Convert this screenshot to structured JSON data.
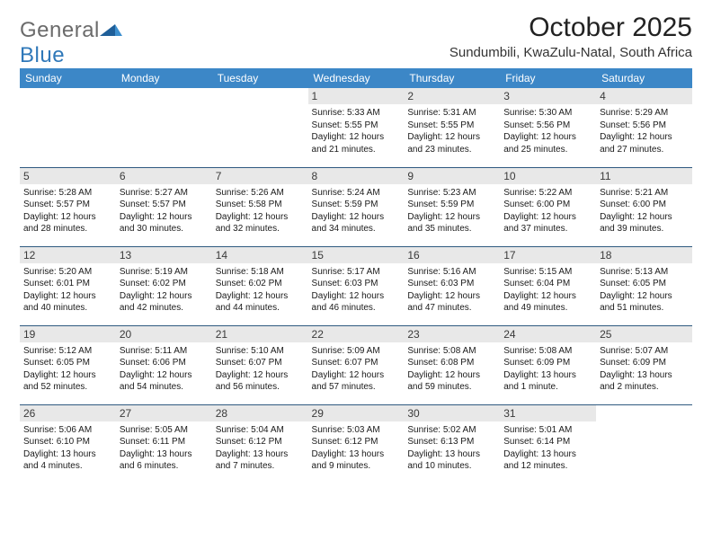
{
  "brand": {
    "word1": "General",
    "word2": "Blue"
  },
  "title": "October 2025",
  "location": "Sundumbili, KwaZulu-Natal, South Africa",
  "colors": {
    "header_bg": "#3c87c7",
    "header_text": "#ffffff",
    "row_divider": "#2f5a80",
    "daynum_bg": "#e8e8e8",
    "logo_gray": "#6b6b6b",
    "logo_blue": "#2f78b9",
    "body_text": "#1a1a1a",
    "page_bg": "#ffffff"
  },
  "typography": {
    "title_fontsize": 30,
    "location_fontsize": 15,
    "weekday_fontsize": 12,
    "daynum_fontsize": 12,
    "body_fontsize": 10,
    "logo_fontsize": 24
  },
  "weekdays": [
    "Sunday",
    "Monday",
    "Tuesday",
    "Wednesday",
    "Thursday",
    "Friday",
    "Saturday"
  ],
  "weeks": [
    [
      null,
      null,
      null,
      {
        "n": "1",
        "sunrise": "Sunrise: 5:33 AM",
        "sunset": "Sunset: 5:55 PM",
        "dl1": "Daylight: 12 hours",
        "dl2": "and 21 minutes."
      },
      {
        "n": "2",
        "sunrise": "Sunrise: 5:31 AM",
        "sunset": "Sunset: 5:55 PM",
        "dl1": "Daylight: 12 hours",
        "dl2": "and 23 minutes."
      },
      {
        "n": "3",
        "sunrise": "Sunrise: 5:30 AM",
        "sunset": "Sunset: 5:56 PM",
        "dl1": "Daylight: 12 hours",
        "dl2": "and 25 minutes."
      },
      {
        "n": "4",
        "sunrise": "Sunrise: 5:29 AM",
        "sunset": "Sunset: 5:56 PM",
        "dl1": "Daylight: 12 hours",
        "dl2": "and 27 minutes."
      }
    ],
    [
      {
        "n": "5",
        "sunrise": "Sunrise: 5:28 AM",
        "sunset": "Sunset: 5:57 PM",
        "dl1": "Daylight: 12 hours",
        "dl2": "and 28 minutes."
      },
      {
        "n": "6",
        "sunrise": "Sunrise: 5:27 AM",
        "sunset": "Sunset: 5:57 PM",
        "dl1": "Daylight: 12 hours",
        "dl2": "and 30 minutes."
      },
      {
        "n": "7",
        "sunrise": "Sunrise: 5:26 AM",
        "sunset": "Sunset: 5:58 PM",
        "dl1": "Daylight: 12 hours",
        "dl2": "and 32 minutes."
      },
      {
        "n": "8",
        "sunrise": "Sunrise: 5:24 AM",
        "sunset": "Sunset: 5:59 PM",
        "dl1": "Daylight: 12 hours",
        "dl2": "and 34 minutes."
      },
      {
        "n": "9",
        "sunrise": "Sunrise: 5:23 AM",
        "sunset": "Sunset: 5:59 PM",
        "dl1": "Daylight: 12 hours",
        "dl2": "and 35 minutes."
      },
      {
        "n": "10",
        "sunrise": "Sunrise: 5:22 AM",
        "sunset": "Sunset: 6:00 PM",
        "dl1": "Daylight: 12 hours",
        "dl2": "and 37 minutes."
      },
      {
        "n": "11",
        "sunrise": "Sunrise: 5:21 AM",
        "sunset": "Sunset: 6:00 PM",
        "dl1": "Daylight: 12 hours",
        "dl2": "and 39 minutes."
      }
    ],
    [
      {
        "n": "12",
        "sunrise": "Sunrise: 5:20 AM",
        "sunset": "Sunset: 6:01 PM",
        "dl1": "Daylight: 12 hours",
        "dl2": "and 40 minutes."
      },
      {
        "n": "13",
        "sunrise": "Sunrise: 5:19 AM",
        "sunset": "Sunset: 6:02 PM",
        "dl1": "Daylight: 12 hours",
        "dl2": "and 42 minutes."
      },
      {
        "n": "14",
        "sunrise": "Sunrise: 5:18 AM",
        "sunset": "Sunset: 6:02 PM",
        "dl1": "Daylight: 12 hours",
        "dl2": "and 44 minutes."
      },
      {
        "n": "15",
        "sunrise": "Sunrise: 5:17 AM",
        "sunset": "Sunset: 6:03 PM",
        "dl1": "Daylight: 12 hours",
        "dl2": "and 46 minutes."
      },
      {
        "n": "16",
        "sunrise": "Sunrise: 5:16 AM",
        "sunset": "Sunset: 6:03 PM",
        "dl1": "Daylight: 12 hours",
        "dl2": "and 47 minutes."
      },
      {
        "n": "17",
        "sunrise": "Sunrise: 5:15 AM",
        "sunset": "Sunset: 6:04 PM",
        "dl1": "Daylight: 12 hours",
        "dl2": "and 49 minutes."
      },
      {
        "n": "18",
        "sunrise": "Sunrise: 5:13 AM",
        "sunset": "Sunset: 6:05 PM",
        "dl1": "Daylight: 12 hours",
        "dl2": "and 51 minutes."
      }
    ],
    [
      {
        "n": "19",
        "sunrise": "Sunrise: 5:12 AM",
        "sunset": "Sunset: 6:05 PM",
        "dl1": "Daylight: 12 hours",
        "dl2": "and 52 minutes."
      },
      {
        "n": "20",
        "sunrise": "Sunrise: 5:11 AM",
        "sunset": "Sunset: 6:06 PM",
        "dl1": "Daylight: 12 hours",
        "dl2": "and 54 minutes."
      },
      {
        "n": "21",
        "sunrise": "Sunrise: 5:10 AM",
        "sunset": "Sunset: 6:07 PM",
        "dl1": "Daylight: 12 hours",
        "dl2": "and 56 minutes."
      },
      {
        "n": "22",
        "sunrise": "Sunrise: 5:09 AM",
        "sunset": "Sunset: 6:07 PM",
        "dl1": "Daylight: 12 hours",
        "dl2": "and 57 minutes."
      },
      {
        "n": "23",
        "sunrise": "Sunrise: 5:08 AM",
        "sunset": "Sunset: 6:08 PM",
        "dl1": "Daylight: 12 hours",
        "dl2": "and 59 minutes."
      },
      {
        "n": "24",
        "sunrise": "Sunrise: 5:08 AM",
        "sunset": "Sunset: 6:09 PM",
        "dl1": "Daylight: 13 hours",
        "dl2": "and 1 minute."
      },
      {
        "n": "25",
        "sunrise": "Sunrise: 5:07 AM",
        "sunset": "Sunset: 6:09 PM",
        "dl1": "Daylight: 13 hours",
        "dl2": "and 2 minutes."
      }
    ],
    [
      {
        "n": "26",
        "sunrise": "Sunrise: 5:06 AM",
        "sunset": "Sunset: 6:10 PM",
        "dl1": "Daylight: 13 hours",
        "dl2": "and 4 minutes."
      },
      {
        "n": "27",
        "sunrise": "Sunrise: 5:05 AM",
        "sunset": "Sunset: 6:11 PM",
        "dl1": "Daylight: 13 hours",
        "dl2": "and 6 minutes."
      },
      {
        "n": "28",
        "sunrise": "Sunrise: 5:04 AM",
        "sunset": "Sunset: 6:12 PM",
        "dl1": "Daylight: 13 hours",
        "dl2": "and 7 minutes."
      },
      {
        "n": "29",
        "sunrise": "Sunrise: 5:03 AM",
        "sunset": "Sunset: 6:12 PM",
        "dl1": "Daylight: 13 hours",
        "dl2": "and 9 minutes."
      },
      {
        "n": "30",
        "sunrise": "Sunrise: 5:02 AM",
        "sunset": "Sunset: 6:13 PM",
        "dl1": "Daylight: 13 hours",
        "dl2": "and 10 minutes."
      },
      {
        "n": "31",
        "sunrise": "Sunrise: 5:01 AM",
        "sunset": "Sunset: 6:14 PM",
        "dl1": "Daylight: 13 hours",
        "dl2": "and 12 minutes."
      },
      null
    ]
  ]
}
